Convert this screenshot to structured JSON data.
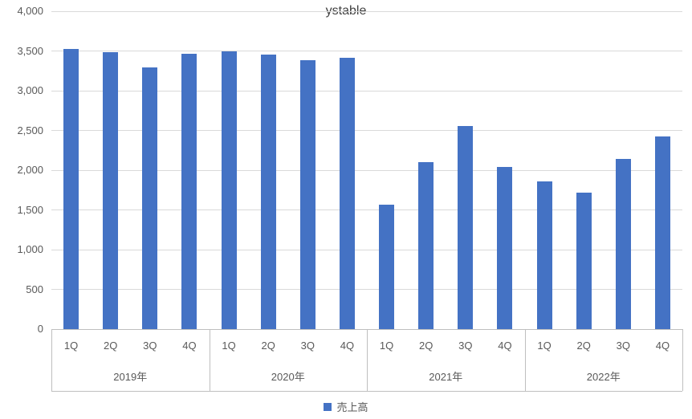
{
  "title": "ystable",
  "legend": {
    "label": "売上高"
  },
  "chart_data": {
    "type": "bar",
    "title": "ystable",
    "xlabel": "",
    "ylabel": "",
    "ylim": [
      0,
      4000
    ],
    "ytick_step": 500,
    "y_tick_labels": [
      "0",
      "500",
      "1,000",
      "1,500",
      "2,000",
      "2,500",
      "3,000",
      "3,500",
      "4,000"
    ],
    "grid": true,
    "legend_position": "bottom",
    "groups": [
      {
        "label": "2019年",
        "categories": [
          "1Q",
          "2Q",
          "3Q",
          "4Q"
        ],
        "values": [
          3530,
          3480,
          3290,
          3460
        ]
      },
      {
        "label": "2020年",
        "categories": [
          "1Q",
          "2Q",
          "3Q",
          "4Q"
        ],
        "values": [
          3490,
          3450,
          3380,
          3410
        ]
      },
      {
        "label": "2021年",
        "categories": [
          "1Q",
          "2Q",
          "3Q",
          "4Q"
        ],
        "values": [
          1570,
          2100,
          2560,
          2040
        ]
      },
      {
        "label": "2022年",
        "categories": [
          "1Q",
          "2Q",
          "3Q",
          "4Q"
        ],
        "values": [
          1860,
          1720,
          2140,
          2420
        ]
      }
    ],
    "series": [
      {
        "name": "売上高",
        "color": "#4472C4",
        "values": [
          3530,
          3480,
          3290,
          3460,
          3490,
          3450,
          3380,
          3410,
          1570,
          2100,
          2560,
          2040,
          1860,
          1720,
          2140,
          2420
        ]
      }
    ],
    "colors": {
      "bar": "#4472C4",
      "gridline": "#D9D9D9",
      "axis_line": "#BFBFBF",
      "axis_text": "#595959",
      "title_text": "#404040"
    }
  }
}
